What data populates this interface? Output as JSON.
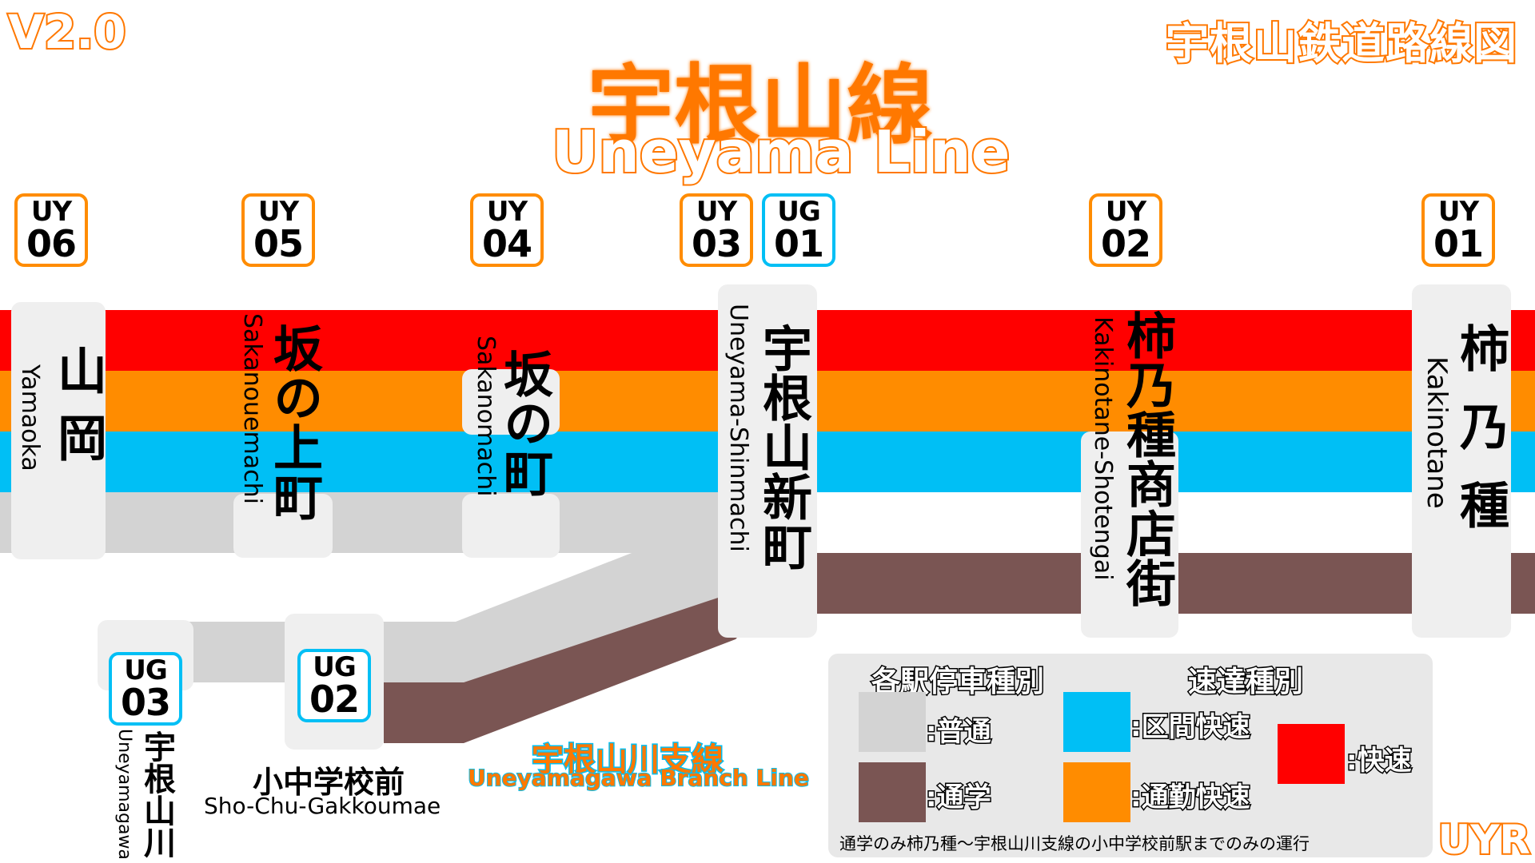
{
  "header": {
    "version": "V2.0",
    "map_title": "宇根山鉄道路線図",
    "line_name_ja": "宇根山線",
    "line_name_en": "Uneyama Line"
  },
  "stations": [
    {
      "code": "UY",
      "number": "06",
      "name_ja": "山岡",
      "name_en": "Yamaoka"
    },
    {
      "code": "UY",
      "number": "05",
      "name_ja": "坂の上町",
      "name_en": "Sakanouemachi"
    },
    {
      "code": "UY",
      "number": "04",
      "name_ja": "坂の町",
      "name_en": "Sakanomachi"
    },
    {
      "code": "UY",
      "number": "03",
      "code2": "UG",
      "number2": "01",
      "name_ja": "宇根山新町",
      "name_en": "Uneyama-Shinmachi"
    },
    {
      "code": "UY",
      "number": "02",
      "name_ja": "柿乃種商店街",
      "name_en": "Kakinotane-Shotengai"
    },
    {
      "code": "UY",
      "number": "01",
      "name_ja": "柿乃種",
      "name_en": "Kakinotane"
    }
  ],
  "branch_stations": [
    {
      "code": "UG",
      "number": "03",
      "name_ja": "宇根山川",
      "name_en": "Uneyamagawa"
    },
    {
      "code": "UG",
      "number": "02",
      "name_ja": "小中学校前",
      "name_en": "Sho-Chu-Gakkoumae"
    }
  ],
  "branch": {
    "name_ja": "宇根山川支線",
    "name_en": "Uneyamagawa Branch Line"
  },
  "legend": {
    "local_heading": "各駅停車種別",
    "express_heading": "速達種別",
    "items": [
      {
        "label": ":普通",
        "color": "#d3d3d3"
      },
      {
        "label": ":通学",
        "color": "#7a5553"
      },
      {
        "label": ":区間快速",
        "color": "#00bff5"
      },
      {
        "label": ":通勤快速",
        "color": "#ff8c00"
      },
      {
        "label": ":快速",
        "color": "#ff0000"
      }
    ],
    "note": "通学のみ柿乃種～宇根山川支線の小中学校前駅までのみの運行"
  },
  "brand": "UYR",
  "colors": {
    "rapid": "#ff0000",
    "commuter_rapid": "#ff8c00",
    "section_rapid": "#00bff5",
    "local": "#d3d3d3",
    "school": "#7a5553",
    "accent_orange": "#ff7800"
  }
}
